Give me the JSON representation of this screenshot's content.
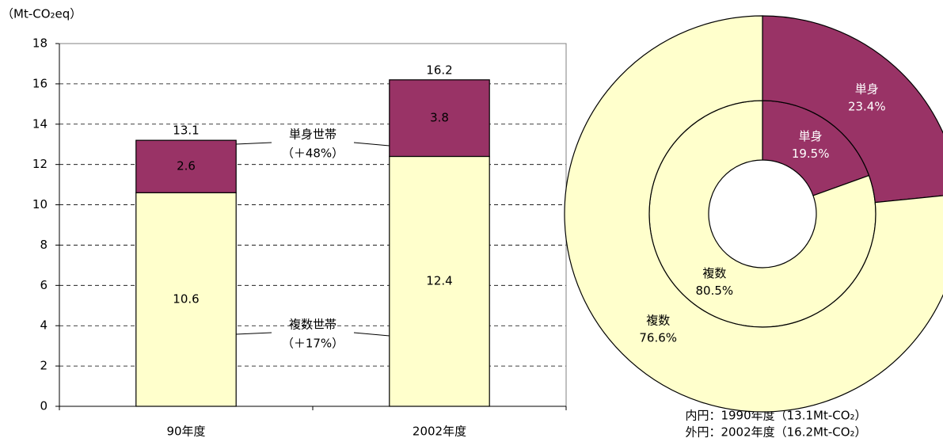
{
  "chart_data": [
    {
      "type": "bar",
      "stacked": true,
      "y_label": "（Mt-CO₂eq）",
      "categories": [
        "90年度",
        "2002年度"
      ],
      "series": [
        {
          "name": "複数世帯",
          "annotation": "（＋17%）",
          "color": "#ffffcc",
          "values": [
            10.6,
            12.4
          ]
        },
        {
          "name": "単身世帯",
          "annotation": "（＋48%）",
          "color": "#993366",
          "values": [
            2.6,
            3.8
          ]
        }
      ],
      "totals": [
        13.1,
        16.2
      ],
      "ylim": [
        0,
        18
      ],
      "yticks": [
        0,
        2,
        4,
        6,
        8,
        10,
        12,
        14,
        16,
        18
      ],
      "grid": true
    },
    {
      "type": "donut",
      "categories": [
        "単身",
        "複数"
      ],
      "colors": [
        "#993366",
        "#ffffcc"
      ],
      "series": [
        {
          "name": "内円：1990年度（13.1Mt-CO₂）",
          "values": [
            19.5,
            80.5
          ],
          "value_labels": [
            "19.5%",
            "80.5%"
          ]
        },
        {
          "name": "外円：2002年度（16.2Mt-CO₂）",
          "values": [
            23.4,
            76.6
          ],
          "value_labels": [
            "23.4%",
            "76.6%"
          ]
        }
      ]
    }
  ]
}
